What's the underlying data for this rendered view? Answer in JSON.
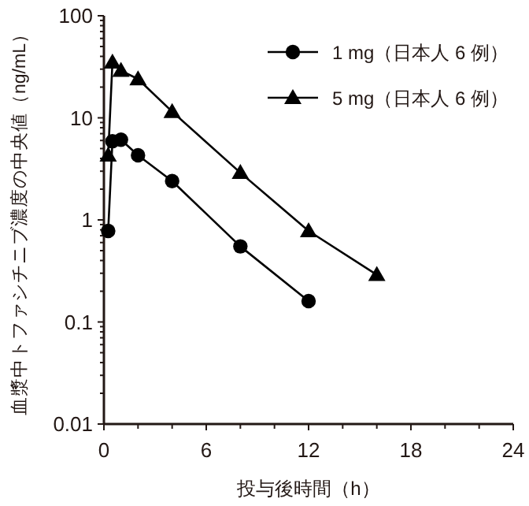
{
  "chart_data": {
    "type": "line",
    "xlabel": "投与後時間（h）",
    "ylabel": "血漿中トファシチニブ濃度の中央値（ng/mL）",
    "log": "y",
    "legend": "top right",
    "grid": false,
    "xlim": [
      0,
      24
    ],
    "ylim": [
      0.01,
      100
    ],
    "xticks": [
      0,
      {
        "value": 2,
        "label": null
      },
      {
        "value": 4,
        "label": null
      },
      6,
      {
        "value": 8,
        "label": null
      },
      {
        "value": 10,
        "label": null
      },
      12,
      {
        "value": 14,
        "label": null
      },
      {
        "value": 16,
        "label": null
      },
      18,
      {
        "value": 20,
        "label": null
      },
      {
        "value": 22,
        "label": null
      },
      24
    ],
    "yticks": [
      0.01,
      {
        "value": 0.02,
        "label": null
      },
      {
        "value": 0.03,
        "label": null
      },
      {
        "value": 0.04,
        "label": null
      },
      {
        "value": 0.05,
        "label": null
      },
      {
        "value": 0.06,
        "label": null
      },
      {
        "value": 0.07,
        "label": null
      },
      {
        "value": 0.08,
        "label": null
      },
      {
        "value": 0.09,
        "label": null
      },
      0.1,
      {
        "value": 0.2,
        "label": null
      },
      {
        "value": 0.3,
        "label": null
      },
      {
        "value": 0.4,
        "label": null
      },
      {
        "value": 0.5,
        "label": null
      },
      {
        "value": 0.6,
        "label": null
      },
      {
        "value": 0.7,
        "label": null
      },
      {
        "value": 0.8,
        "label": null
      },
      {
        "value": 0.9,
        "label": null
      },
      1,
      {
        "value": 2,
        "label": null
      },
      {
        "value": 3,
        "label": null
      },
      {
        "value": 4,
        "label": null
      },
      {
        "value": 5,
        "label": null
      },
      {
        "value": 6,
        "label": null
      },
      {
        "value": 7,
        "label": null
      },
      {
        "value": 8,
        "label": null
      },
      {
        "value": 9,
        "label": null
      },
      10,
      {
        "value": 20,
        "label": null
      },
      {
        "value": 30,
        "label": null
      },
      {
        "value": 40,
        "label": null
      },
      {
        "value": 50,
        "label": null
      },
      {
        "value": 60,
        "label": null
      },
      {
        "value": 70,
        "label": null
      },
      {
        "value": 80,
        "label": null
      },
      {
        "value": 90,
        "label": null
      },
      100
    ],
    "line_style": "solid",
    "series": [
      {
        "name": "1 mg（日本人 6 例）",
        "color": "#000000",
        "marker": "circle",
        "x": [
          0.25,
          0.5,
          1,
          2,
          4,
          8,
          12
        ],
        "values": [
          0.78,
          5.9,
          6.1,
          4.3,
          2.4,
          0.55,
          0.16
        ]
      },
      {
        "name": "5 mg（日本人 6 例）",
        "color": "#000000",
        "marker": "triangle",
        "x": [
          0.25,
          0.5,
          1,
          2,
          4,
          8,
          12,
          16
        ],
        "values": [
          4.3,
          35,
          29,
          24,
          11.5,
          2.9,
          0.78,
          0.29
        ]
      }
    ]
  }
}
